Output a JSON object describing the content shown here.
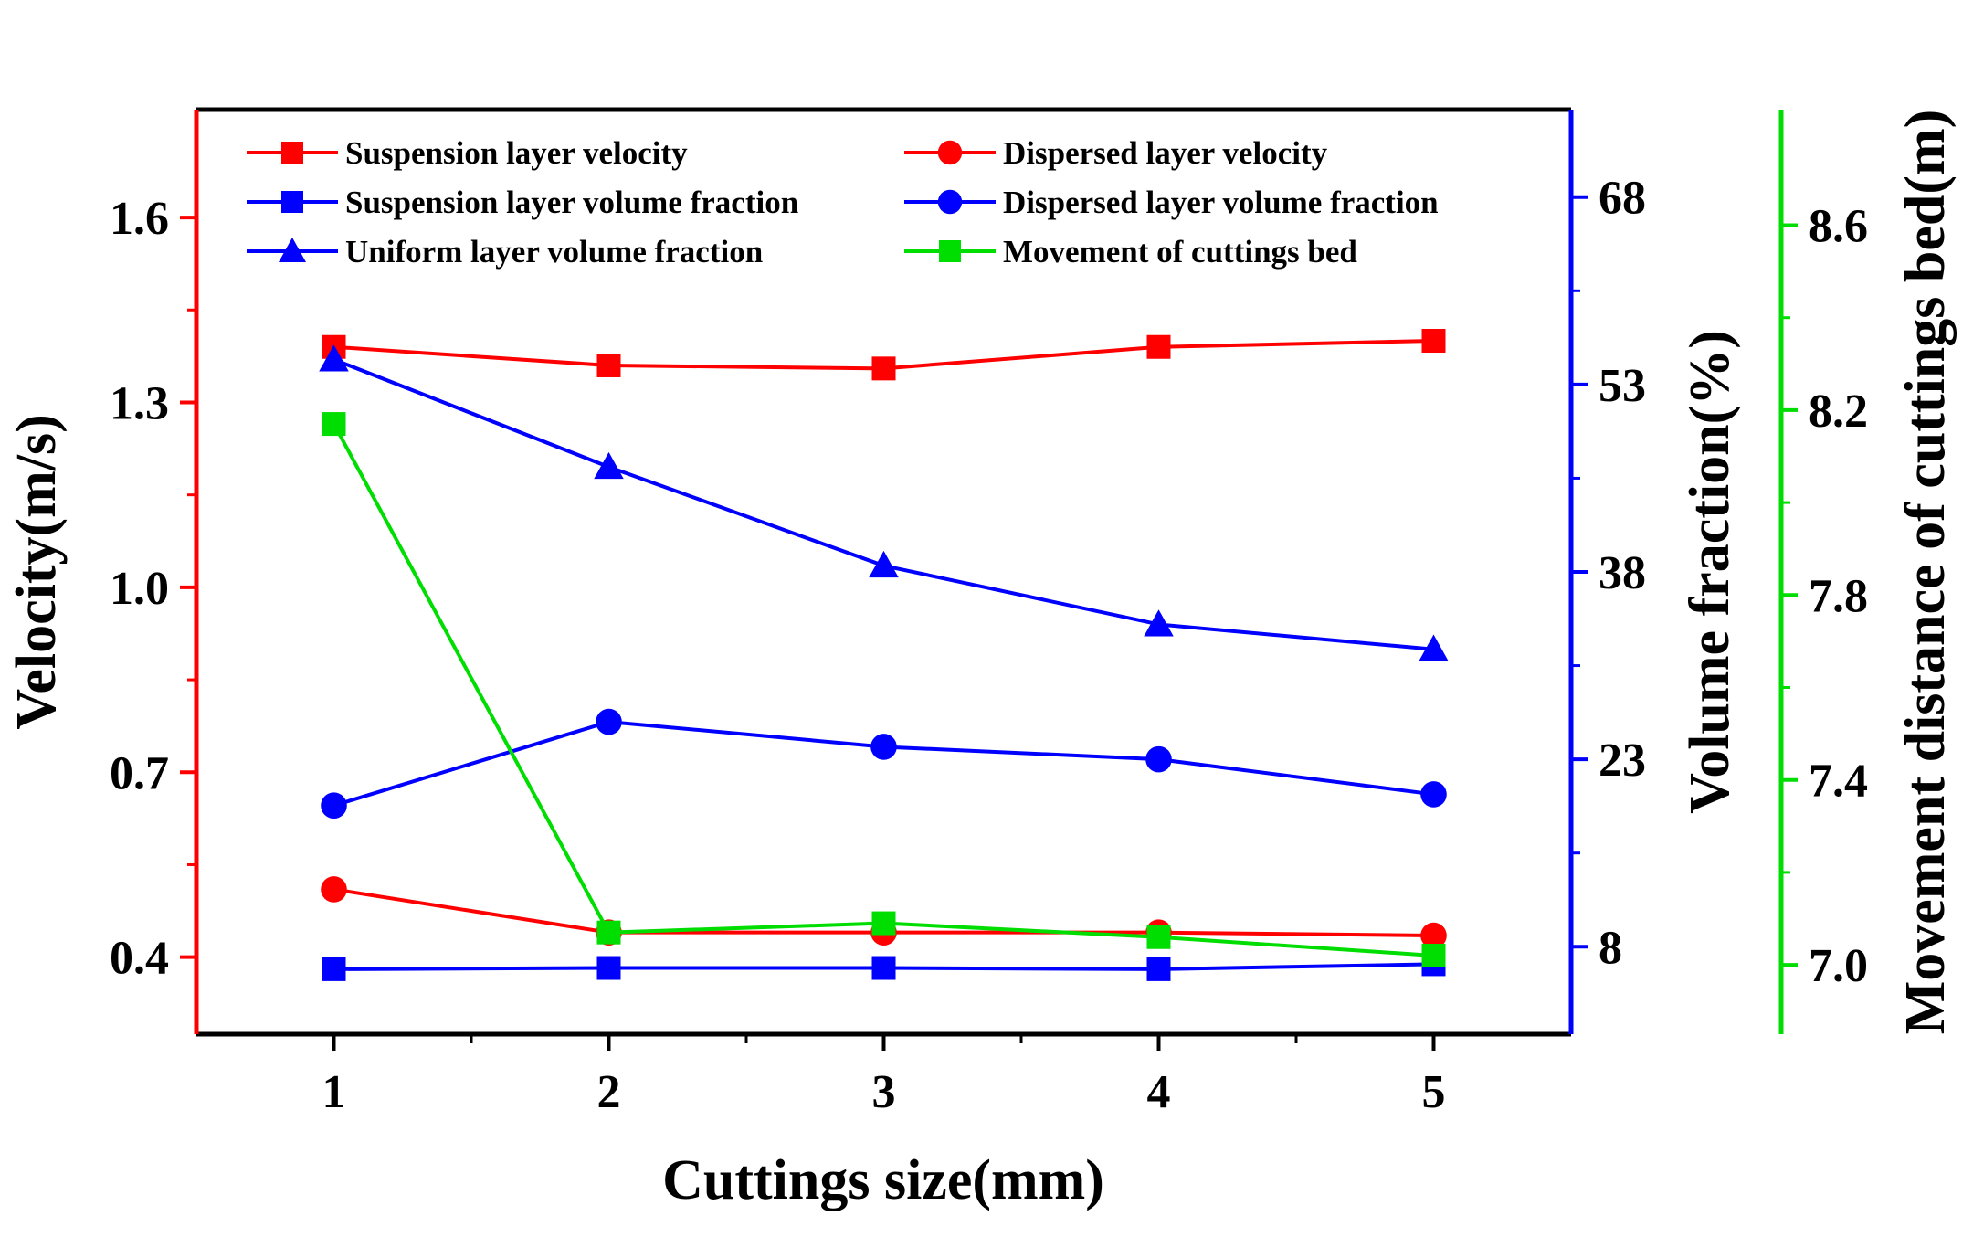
{
  "chart_data": {
    "type": "line",
    "x": [
      1,
      2,
      3,
      4,
      5
    ],
    "xlabel": "Cuttings size(mm)",
    "xlim": [
      0.5,
      5.5
    ],
    "x_ticks": [
      "1",
      "2",
      "3",
      "4",
      "5"
    ],
    "axes": {
      "left": {
        "label": "Velocity(m/s)",
        "color": "#ff0000",
        "lim": [
          0.275,
          1.775
        ],
        "ticks": [
          "0.4",
          "0.7",
          "1.0",
          "1.3",
          "1.6"
        ],
        "tick_values": [
          0.4,
          0.7,
          1.0,
          1.3,
          1.6
        ]
      },
      "right1": {
        "label": "Volume fraction(%)",
        "color": "#0000ff",
        "lim": [
          1,
          75
        ],
        "ticks": [
          "8",
          "23",
          "38",
          "53",
          "68"
        ],
        "tick_values": [
          8,
          23,
          38,
          53,
          68
        ]
      },
      "right2": {
        "label": "Movement distance of cuttings bed(m)",
        "color": "#00dd00",
        "lim": [
          6.85,
          8.85
        ],
        "ticks": [
          "7.0",
          "7.4",
          "7.8",
          "8.2",
          "8.6"
        ],
        "tick_values": [
          7.0,
          7.4,
          7.8,
          8.2,
          8.6
        ]
      }
    },
    "series": [
      {
        "name": "Suspension layer velocity",
        "axis": "left",
        "color": "#ff0000",
        "marker": "square",
        "values": [
          1.39,
          1.36,
          1.355,
          1.39,
          1.4
        ]
      },
      {
        "name": "Dispersed layer velocity",
        "axis": "left",
        "color": "#ff0000",
        "marker": "circle",
        "values": [
          0.51,
          0.44,
          0.44,
          0.44,
          0.435
        ]
      },
      {
        "name": "Suspension layer volume fraction",
        "axis": "right1",
        "color": "#0000ff",
        "marker": "square",
        "values": [
          6.2,
          6.3,
          6.3,
          6.2,
          6.6
        ]
      },
      {
        "name": "Dispersed layer volume fraction",
        "axis": "right1",
        "color": "#0000ff",
        "marker": "circle",
        "values": [
          19.3,
          26.0,
          24.0,
          23.0,
          20.2
        ]
      },
      {
        "name": "Uniform layer volume fraction",
        "axis": "right1",
        "color": "#0000ff",
        "marker": "triangle",
        "values": [
          55.0,
          46.4,
          38.5,
          33.8,
          31.8
        ]
      },
      {
        "name": "Movement of cuttings bed",
        "axis": "right2",
        "color": "#00dd00",
        "marker": "square",
        "values": [
          8.17,
          7.07,
          7.09,
          7.06,
          7.02
        ]
      }
    ]
  }
}
